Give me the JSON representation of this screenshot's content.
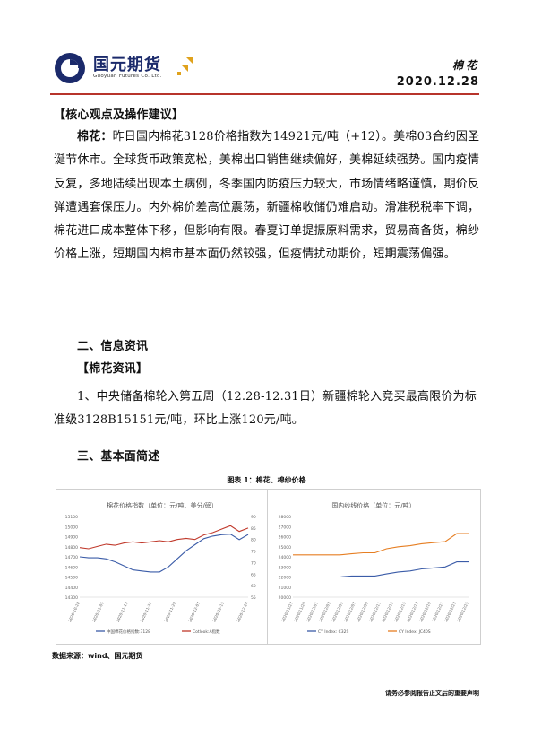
{
  "header": {
    "company_name": "国元期货",
    "company_name_en": "Guoyuan Futures Co.  Ltd.",
    "category": "棉花",
    "date": "2020.12.28"
  },
  "core_view": {
    "heading": "【核心观点及操作建议】",
    "label": "棉花：",
    "text": "昨日国内棉花3128价格指数为14921元/吨（+12）。美棉03合约因圣诞节休市。全球货币政策宽松，美棉出口销售继续偏好，美棉延续强势。国内疫情反复，多地陆续出现本土病例，冬季国内防疫压力较大，市场情绪略谨慎，期价反弹遭遇套保压力。内外棉价差高位震荡，新疆棉收储仍难启动。滑准税税率下调，棉花进口成本整体下移，但影响有限。春夏订单提振原料需求，贸易商备货，棉纱价格上涨，短期国内棉市基本面仍然较强，但疫情扰动期价，短期震荡偏强。"
  },
  "section2": {
    "heading": "二、信息资讯",
    "sub_heading": "【棉花资讯】",
    "item": "1、中央储备棉轮入第五周（12.28-12.31日）新疆棉轮入竞买最高限价为标准级3128B15151元/吨，环比上涨120元/吨。"
  },
  "section3": {
    "heading": "三、基本面简述",
    "figure_title": "图表 1：棉花、棉纱价格"
  },
  "chart_data": [
    {
      "type": "line",
      "title": "棉花价格指数（单位：元/吨、美分/磅）",
      "x_ticks": [
        "2020-10-28",
        "2020-11-05",
        "2020-11-13",
        "2020-11-21",
        "2020-11-29",
        "2020-12-07",
        "2020-12-15",
        "2020-12-24"
      ],
      "y_left_ticks": [
        "15100",
        "15000",
        "14900",
        "14800",
        "14700",
        "14600",
        "14500",
        "14400",
        "14300"
      ],
      "y_right_ticks": [
        "90",
        "85",
        "80",
        "75",
        "70",
        "65",
        "60",
        "55"
      ],
      "ylim_left": [
        14300,
        15100
      ],
      "ylim_right": [
        55,
        90
      ],
      "series": [
        {
          "name": "中国棉花价格指数:3128",
          "color": "#3b5ca8",
          "axis": "left",
          "values": [
            14700,
            14690,
            14690,
            14680,
            14650,
            14610,
            14570,
            14560,
            14550,
            14550,
            14600,
            14680,
            14760,
            14820,
            14880,
            14905,
            14920,
            14925,
            14870,
            14921
          ]
        },
        {
          "name": "Cotlook:A指数",
          "color": "#c0392b",
          "axis": "right",
          "values": [
            76.5,
            76.0,
            77.0,
            78.0,
            77.5,
            78.5,
            79.0,
            78.5,
            79.0,
            79.5,
            79.0,
            80.0,
            80.5,
            80.0,
            82.0,
            83.0,
            84.5,
            86.0,
            83.5,
            85.0
          ]
        }
      ]
    },
    {
      "type": "line",
      "title": "国内纱线价格（单位：元/吨）",
      "x_ticks": [
        "2020/11/27",
        "2020/11/29",
        "2020/12/01",
        "2020/12/03",
        "2020/12/05",
        "2020/12/07",
        "2020/12/09",
        "2020/12/11",
        "2020/12/13",
        "2020/12/15",
        "2020/12/17",
        "2020/12/19",
        "2020/12/21",
        "2020/12/23",
        "2020/12/25"
      ],
      "y_ticks": [
        "28000",
        "27000",
        "26000",
        "25000",
        "24000",
        "23000",
        "22000",
        "21000",
        "20000"
      ],
      "ylim": [
        20000,
        28000
      ],
      "series": [
        {
          "name": "CY Index: C32S",
          "color": "#3b5ca8",
          "values": [
            22000,
            22000,
            22000,
            22000,
            22000,
            22100,
            22100,
            22100,
            22300,
            22500,
            22600,
            22800,
            22900,
            23000,
            23500,
            23500
          ]
        },
        {
          "name": "CY Index: JC40S",
          "color": "#e67e22",
          "values": [
            24200,
            24200,
            24200,
            24200,
            24200,
            24300,
            24400,
            24400,
            24800,
            25000,
            25100,
            25300,
            25400,
            25500,
            26300,
            26300
          ]
        }
      ]
    }
  ],
  "source": "数据来源：wind、国元期货",
  "footer": "请务必参阅报告正文后的重要声明",
  "colors": {
    "accent": "#b7342b",
    "brand": "#1b2a6b",
    "logo_gold": "#e0a21c"
  }
}
